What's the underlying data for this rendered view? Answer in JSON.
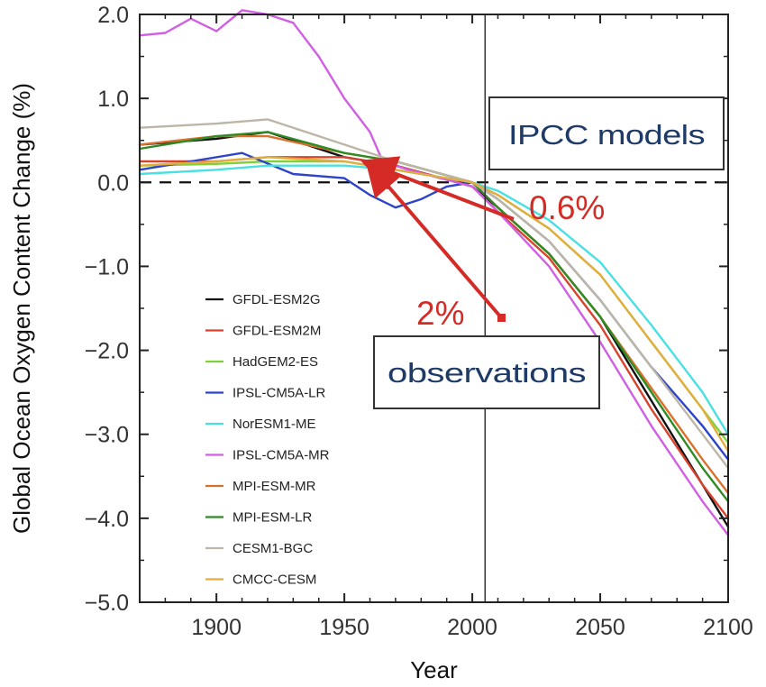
{
  "chart_data": {
    "type": "line",
    "xlabel": "Year",
    "ylabel": "Global Ocean Oxygen Content Change (%)",
    "xlim": [
      1870,
      2100
    ],
    "ylim": [
      -5.0,
      2.0
    ],
    "x_ticks": [
      1900,
      1950,
      2000,
      2050,
      2100
    ],
    "x_tick_labels": [
      "1900",
      "1950",
      "2000",
      "2050",
      "2100"
    ],
    "y_ticks": [
      2.0,
      1.0,
      0.0,
      -1.0,
      -2.0,
      -3.0,
      -4.0,
      -5.0
    ],
    "y_tick_labels": [
      "2.0",
      "1.0",
      "0.0",
      "−1.0",
      "−2.0",
      "−3.0",
      "−4.0",
      "−5.0"
    ],
    "zero_line": {
      "y": 0.0,
      "style": "dashed"
    },
    "present_line": {
      "x": 2005
    },
    "series": [
      {
        "name": "GFDL-ESM2G",
        "color": "#111111",
        "x": [
          1870,
          1900,
          1920,
          1950,
          1970,
          2000,
          2010,
          2030,
          2050,
          2070,
          2090,
          2100
        ],
        "y": [
          0.45,
          0.52,
          0.6,
          0.3,
          0.2,
          -0.05,
          -0.3,
          -0.85,
          -1.6,
          -2.6,
          -3.6,
          -4.1
        ]
      },
      {
        "name": "GFDL-ESM2M",
        "color": "#d9432e",
        "x": [
          1870,
          1900,
          1920,
          1950,
          1970,
          2000,
          2010,
          2030,
          2050,
          2070,
          2090,
          2100
        ],
        "y": [
          0.25,
          0.25,
          0.3,
          0.3,
          0.2,
          -0.05,
          -0.35,
          -0.9,
          -1.7,
          -2.7,
          -3.6,
          -4.0
        ]
      },
      {
        "name": "HadGEM2-ES",
        "color": "#7fd13b",
        "x": [
          1870,
          1900,
          1920,
          1950,
          1970,
          2000,
          2010,
          2030,
          2050,
          2070,
          2090,
          2100
        ],
        "y": [
          0.2,
          0.22,
          0.25,
          0.25,
          0.15,
          0.0,
          -0.15,
          -0.55,
          -1.1,
          -1.9,
          -2.7,
          -3.1
        ]
      },
      {
        "name": "IPSL-CM5A-LR",
        "color": "#2d43c9",
        "x": [
          1870,
          1890,
          1910,
          1930,
          1950,
          1960,
          1970,
          1980,
          1990,
          2000,
          2010,
          2030,
          2050,
          2070,
          2090,
          2100
        ],
        "y": [
          0.15,
          0.25,
          0.35,
          0.1,
          0.05,
          -0.15,
          -0.3,
          -0.2,
          -0.05,
          0.0,
          -0.2,
          -0.7,
          -1.4,
          -2.2,
          -2.9,
          -3.3
        ]
      },
      {
        "name": "NorESM1-ME",
        "color": "#49e0e3",
        "x": [
          1870,
          1900,
          1920,
          1950,
          1970,
          2000,
          2010,
          2030,
          2050,
          2070,
          2090,
          2100
        ],
        "y": [
          0.1,
          0.15,
          0.2,
          0.2,
          0.15,
          0.0,
          -0.1,
          -0.45,
          -0.95,
          -1.7,
          -2.5,
          -3.0
        ]
      },
      {
        "name": "IPSL-CM5A-MR",
        "color": "#d05fe4",
        "x": [
          1870,
          1880,
          1890,
          1900,
          1910,
          1920,
          1930,
          1940,
          1950,
          1960,
          1965,
          1975,
          2000,
          2010,
          2030,
          2050,
          2070,
          2090,
          2100
        ],
        "y": [
          1.75,
          1.78,
          1.95,
          1.8,
          2.05,
          2.0,
          1.9,
          1.5,
          1.0,
          0.6,
          0.25,
          0.15,
          -0.05,
          -0.35,
          -1.0,
          -1.9,
          -2.9,
          -3.8,
          -4.2
        ]
      },
      {
        "name": "MPI-ESM-MR",
        "color": "#d9712e",
        "x": [
          1870,
          1900,
          1920,
          1950,
          1970,
          2000,
          2010,
          2030,
          2050,
          2070,
          2090,
          2100
        ],
        "y": [
          0.45,
          0.55,
          0.55,
          0.35,
          0.25,
          0.0,
          -0.3,
          -0.85,
          -1.6,
          -2.45,
          -3.3,
          -3.7
        ]
      },
      {
        "name": "MPI-ESM-LR",
        "color": "#2f8b24",
        "x": [
          1870,
          1900,
          1920,
          1950,
          1970,
          2000,
          2010,
          2030,
          2050,
          2070,
          2090,
          2100
        ],
        "y": [
          0.4,
          0.55,
          0.6,
          0.35,
          0.25,
          0.0,
          -0.3,
          -0.85,
          -1.6,
          -2.5,
          -3.4,
          -3.8
        ]
      },
      {
        "name": "CESM1-BGC",
        "color": "#bdb6a6",
        "x": [
          1870,
          1900,
          1920,
          1950,
          1970,
          2000,
          2010,
          2030,
          2050,
          2070,
          2090,
          2100
        ],
        "y": [
          0.65,
          0.7,
          0.75,
          0.45,
          0.25,
          0.0,
          -0.2,
          -0.7,
          -1.4,
          -2.2,
          -3.0,
          -3.4
        ]
      },
      {
        "name": "CMCC-CESM",
        "color": "#e3ad3e",
        "x": [
          1870,
          1900,
          1920,
          1950,
          1970,
          2000,
          2010,
          2030,
          2050,
          2070,
          2090,
          2100
        ],
        "y": [
          0.2,
          0.25,
          0.3,
          0.25,
          0.15,
          0.0,
          -0.15,
          -0.55,
          -1.1,
          -1.9,
          -2.7,
          -3.2
        ]
      }
    ],
    "annotations": {
      "models_box": "IPCC models",
      "models_value": "0.6%",
      "observations_box": "observations",
      "observations_value": "2%",
      "arrow_color": "#d42b26"
    }
  }
}
